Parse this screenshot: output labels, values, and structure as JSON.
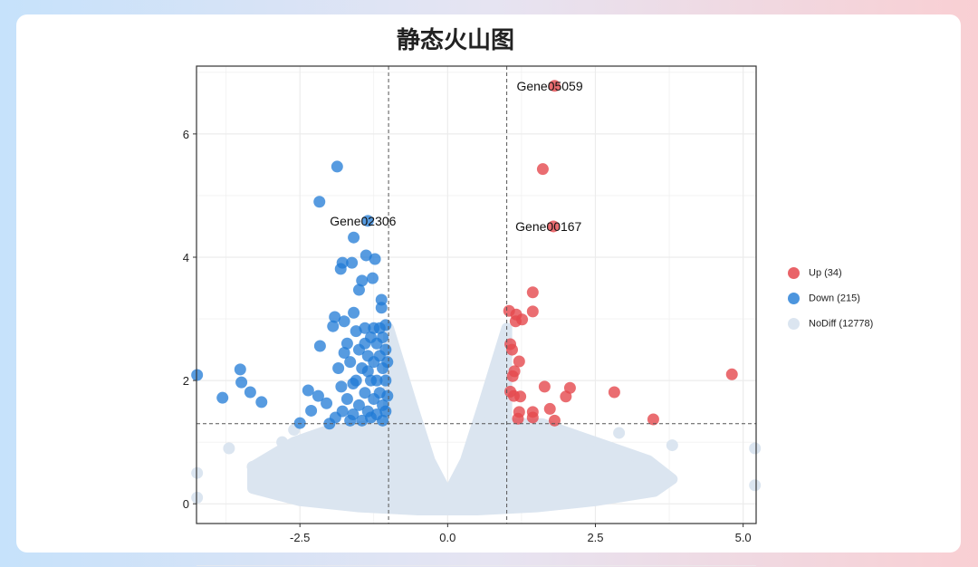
{
  "title": "静态火山图",
  "chart_data": {
    "type": "scatter",
    "title": "静态火山图",
    "xlabel": "",
    "ylabel": "",
    "xlim": [
      -4.25,
      5.22
    ],
    "ylim": [
      -0.32,
      7.1
    ],
    "xticks": [
      "-2.5",
      "0.0",
      "2.5",
      "5.0"
    ],
    "xtick_values": [
      -2.5,
      0,
      2.5,
      5
    ],
    "yticks": [
      "0",
      "2",
      "4",
      "6"
    ],
    "ytick_values": [
      0,
      2,
      4,
      6
    ],
    "vlines": [
      -1,
      1
    ],
    "hline": 1.3,
    "grid": true,
    "legend_position": "right",
    "colors": {
      "up": "#e5484d",
      "down": "#1f7ad6",
      "nodiff": "#dbe5f0"
    },
    "series": [
      {
        "name": "Up (34)",
        "key": "up",
        "points": [
          [
            1.81,
            6.78
          ],
          [
            1.61,
            5.43
          ],
          [
            1.79,
            4.5
          ],
          [
            1.44,
            3.43
          ],
          [
            1.04,
            3.13
          ],
          [
            1.16,
            3.07
          ],
          [
            1.44,
            3.12
          ],
          [
            1.26,
            2.99
          ],
          [
            1.15,
            2.96
          ],
          [
            1.06,
            2.59
          ],
          [
            1.09,
            2.5
          ],
          [
            1.21,
            2.31
          ],
          [
            1.13,
            2.15
          ],
          [
            1.1,
            2.07
          ],
          [
            4.81,
            2.1
          ],
          [
            1.64,
            1.9
          ],
          [
            2.07,
            1.88
          ],
          [
            1.06,
            1.82
          ],
          [
            1.12,
            1.75
          ],
          [
            2.0,
            1.74
          ],
          [
            2.82,
            1.81
          ],
          [
            1.23,
            1.74
          ],
          [
            1.73,
            1.54
          ],
          [
            1.21,
            1.49
          ],
          [
            1.44,
            1.49
          ],
          [
            1.19,
            1.38
          ],
          [
            1.44,
            1.4
          ],
          [
            1.81,
            1.35
          ],
          [
            3.48,
            1.37
          ]
        ]
      },
      {
        "name": "Down (215)",
        "key": "down",
        "points": [
          [
            -1.87,
            5.47
          ],
          [
            -2.17,
            4.9
          ],
          [
            -1.35,
            4.59
          ],
          [
            -1.59,
            4.32
          ],
          [
            -1.38,
            4.03
          ],
          [
            -1.78,
            3.91
          ],
          [
            -1.62,
            3.91
          ],
          [
            -1.23,
            3.97
          ],
          [
            -1.81,
            3.81
          ],
          [
            -1.45,
            3.62
          ],
          [
            -1.27,
            3.66
          ],
          [
            -1.5,
            3.47
          ],
          [
            -1.12,
            3.31
          ],
          [
            -1.12,
            3.18
          ],
          [
            -1.91,
            3.03
          ],
          [
            -1.75,
            2.96
          ],
          [
            -1.59,
            3.1
          ],
          [
            -1.94,
            2.88
          ],
          [
            -2.16,
            2.56
          ],
          [
            -4.24,
            2.09
          ],
          [
            -3.51,
            2.18
          ],
          [
            -3.49,
            1.97
          ],
          [
            -3.34,
            1.81
          ],
          [
            -3.81,
            1.72
          ],
          [
            -3.15,
            1.65
          ],
          [
            -2.36,
            1.84
          ],
          [
            -2.5,
            1.31
          ],
          [
            -2.31,
            1.51
          ],
          [
            -2.19,
            1.75
          ],
          [
            -2.05,
            1.63
          ],
          [
            -1.85,
            2.2
          ],
          [
            -1.8,
            1.9
          ],
          [
            -1.78,
            1.5
          ],
          [
            -1.7,
            2.6
          ],
          [
            -1.7,
            1.7
          ],
          [
            -1.65,
            2.3
          ],
          [
            -1.6,
            1.45
          ],
          [
            -1.55,
            2.8
          ],
          [
            -1.55,
            2.0
          ],
          [
            -1.5,
            2.5
          ],
          [
            -1.5,
            1.6
          ],
          [
            -1.45,
            2.2
          ],
          [
            -1.45,
            1.35
          ],
          [
            -1.4,
            2.85
          ],
          [
            -1.4,
            1.8
          ],
          [
            -1.35,
            2.4
          ],
          [
            -1.35,
            1.5
          ],
          [
            -1.3,
            2.7
          ],
          [
            -1.3,
            2.0
          ],
          [
            -1.3,
            1.4
          ],
          [
            -1.25,
            2.85
          ],
          [
            -1.25,
            2.3
          ],
          [
            -1.25,
            1.7
          ],
          [
            -1.2,
            2.6
          ],
          [
            -1.2,
            2.0
          ],
          [
            -1.2,
            1.45
          ],
          [
            -1.15,
            2.85
          ],
          [
            -1.15,
            2.4
          ],
          [
            -1.15,
            1.8
          ],
          [
            -1.1,
            2.7
          ],
          [
            -1.1,
            2.2
          ],
          [
            -1.1,
            1.6
          ],
          [
            -1.1,
            1.35
          ],
          [
            -1.05,
            2.9
          ],
          [
            -1.05,
            2.5
          ],
          [
            -1.05,
            2.0
          ],
          [
            -1.05,
            1.5
          ],
          [
            -1.02,
            2.3
          ],
          [
            -1.02,
            1.75
          ],
          [
            -1.6,
            1.95
          ],
          [
            -1.9,
            1.4
          ],
          [
            -2.0,
            1.3
          ],
          [
            -1.75,
            2.45
          ],
          [
            -1.65,
            1.35
          ],
          [
            -1.4,
            2.6
          ],
          [
            -1.35,
            2.15
          ]
        ]
      },
      {
        "name": "NoDiff (12778)",
        "key": "nodiff",
        "envelope": [
          [
            -1.0,
            2.85
          ],
          [
            -0.6,
            1.6
          ],
          [
            -0.3,
            0.7
          ],
          [
            0,
            0.15
          ],
          [
            0.3,
            0.7
          ],
          [
            0.6,
            1.6
          ],
          [
            1.0,
            2.85
          ],
          [
            1.0,
            1.3
          ],
          [
            1.6,
            1.3
          ],
          [
            2.2,
            1.1
          ],
          [
            2.8,
            0.9
          ],
          [
            3.4,
            0.7
          ],
          [
            3.8,
            0.4
          ],
          [
            3.5,
            0.2
          ],
          [
            2.5,
            0.05
          ],
          [
            1.5,
            -0.05
          ],
          [
            0.5,
            -0.1
          ],
          [
            -0.5,
            -0.1
          ],
          [
            -1.5,
            -0.05
          ],
          [
            -2.5,
            0.05
          ],
          [
            -3.3,
            0.25
          ],
          [
            -3.3,
            0.6
          ],
          [
            -2.6,
            1.0
          ],
          [
            -2.0,
            1.2
          ],
          [
            -1.0,
            1.3
          ]
        ],
        "points": [
          [
            -4.24,
            0.5
          ],
          [
            -4.24,
            0.1
          ],
          [
            5.2,
            0.9
          ],
          [
            5.2,
            0.3
          ],
          [
            3.8,
            0.95
          ],
          [
            3.0,
            0.7
          ],
          [
            2.6,
            0.95
          ],
          [
            -3.7,
            0.9
          ],
          [
            -3.3,
            0.6
          ],
          [
            -2.8,
            1.0
          ],
          [
            -2.6,
            1.2
          ],
          [
            2.3,
            1.0
          ],
          [
            2.9,
            1.15
          ]
        ]
      }
    ],
    "annotations": [
      {
        "text": "Gene05059",
        "x": 1.81,
        "y": 6.78
      },
      {
        "text": "Gene02306",
        "x": -1.35,
        "y": 4.59
      },
      {
        "text": "Gene00167",
        "x": 1.79,
        "y": 4.5
      }
    ]
  }
}
